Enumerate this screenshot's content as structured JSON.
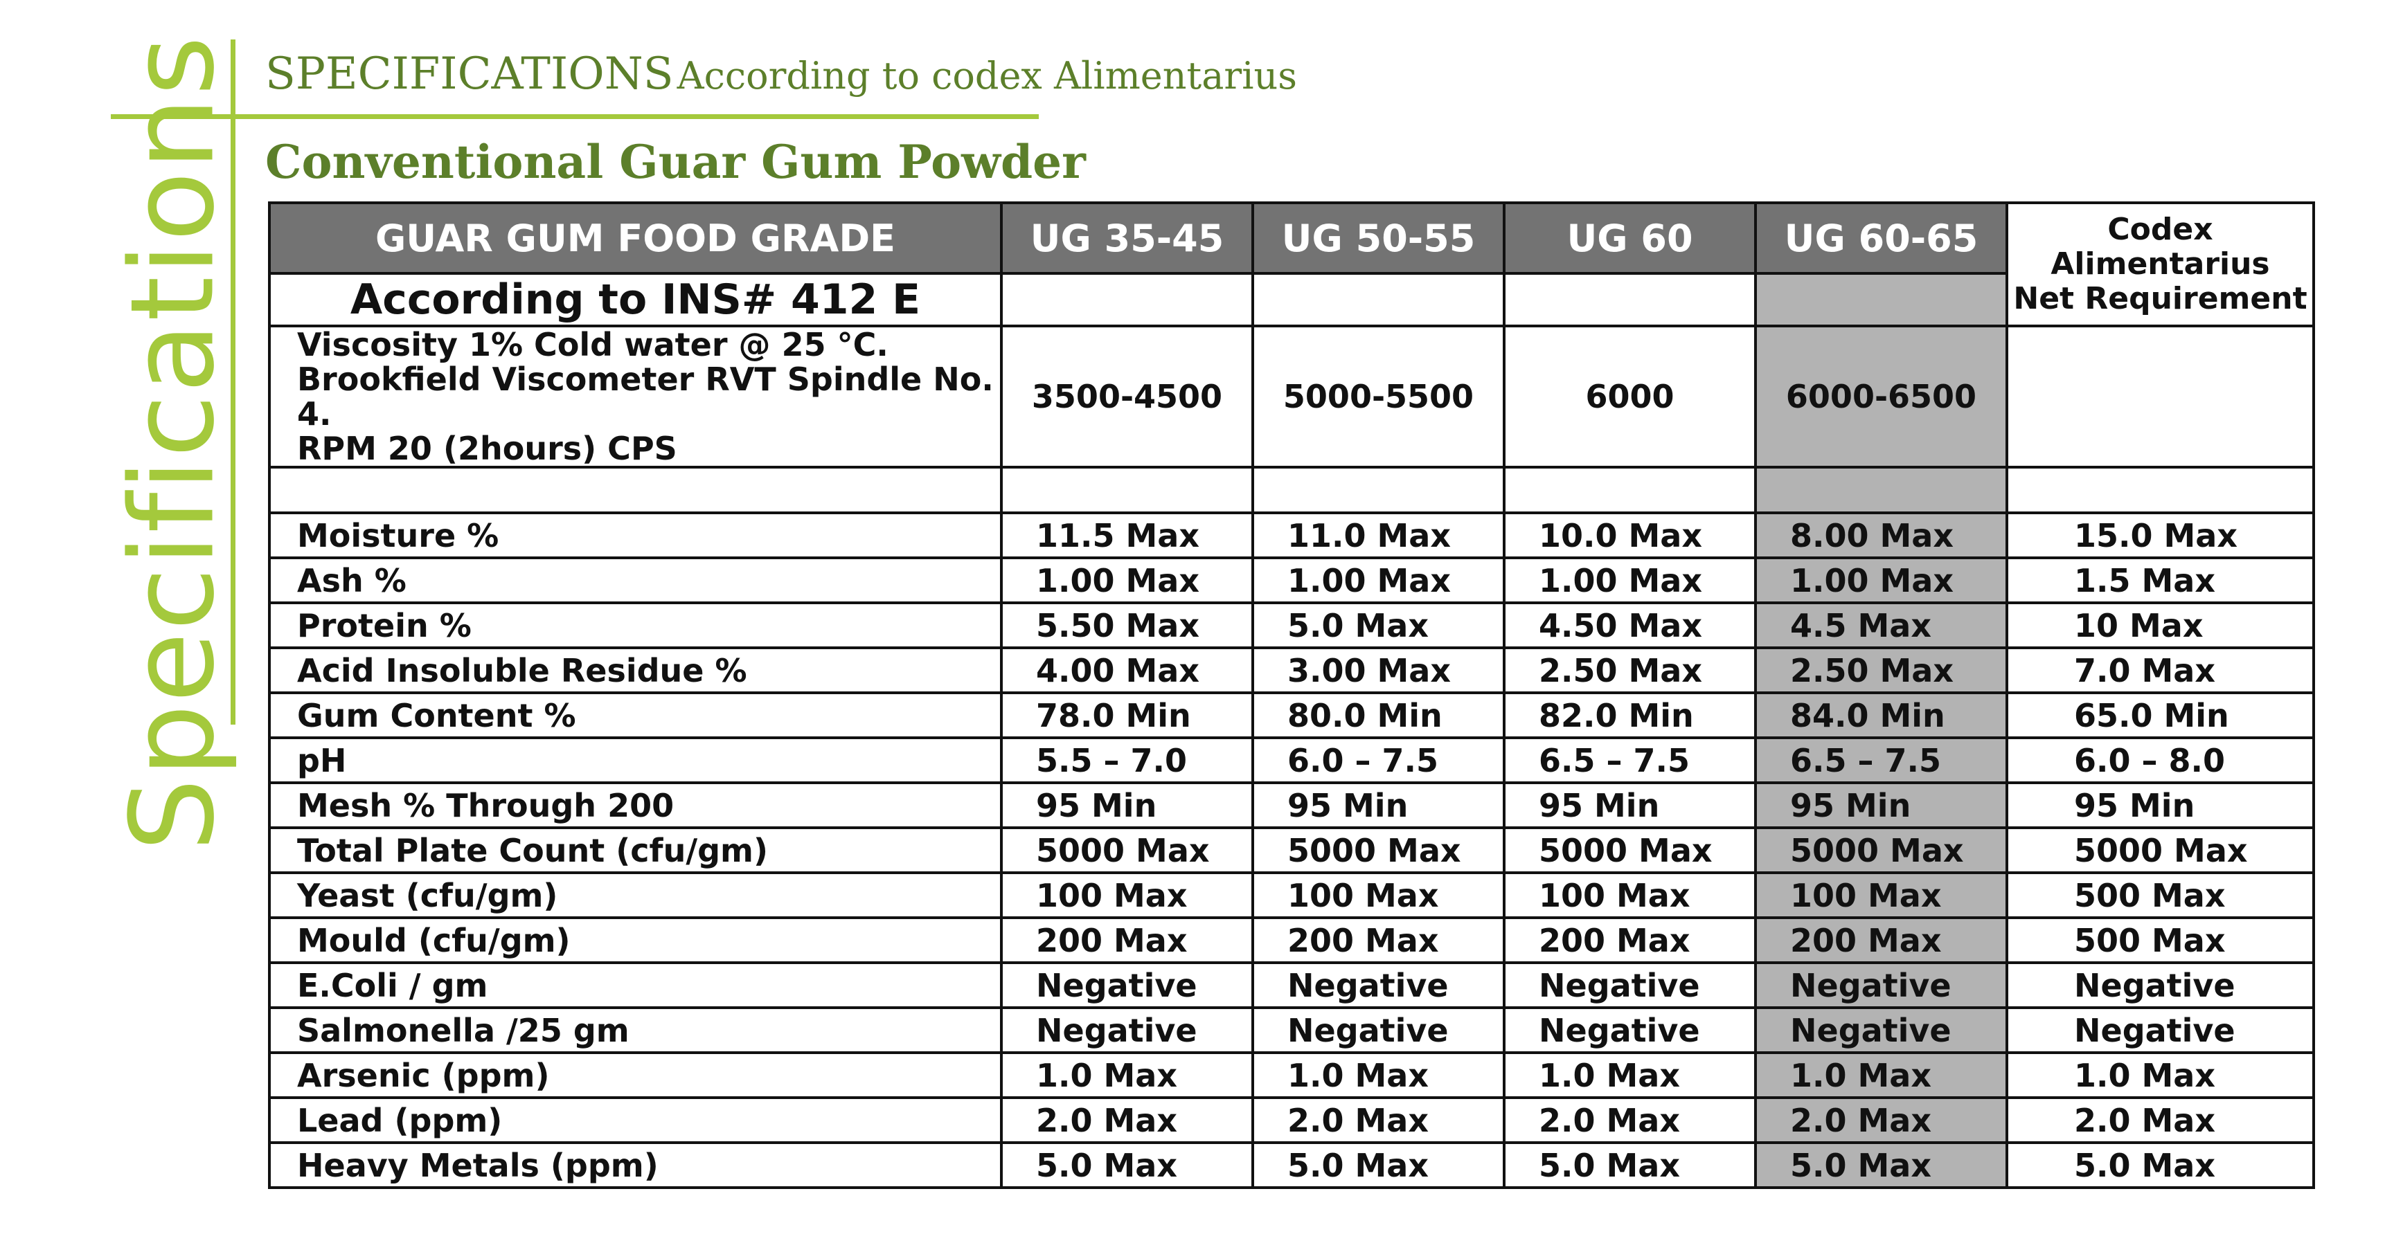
{
  "side_title": "Specifications",
  "heading": {
    "caps": "SPECIFICATIONS",
    "rest": "According to codex Alimentarius"
  },
  "product_title": "Conventional Guar Gum Powder",
  "table": {
    "header": [
      "GUAR GUM FOOD GRADE",
      "UG 35-45",
      "UG 50-55",
      "UG 60",
      "UG 60-65"
    ],
    "codex_header": [
      "Codex",
      "Alimentarius",
      "Net Requirement"
    ],
    "ins_label": "According to INS# 412 E",
    "viscosity": {
      "label_lines": [
        "Viscosity 1% Cold water @ 25 °C.",
        "Brookfield Viscometer RVT Spindle No. 4.",
        "RPM 20 (2hours) CPS"
      ],
      "values": [
        "3500-4500",
        "5000-5500",
        "6000",
        "6000-6500",
        ""
      ]
    },
    "rows": [
      {
        "label": "Moisture %",
        "values": [
          "11.5 Max",
          "11.0 Max",
          "10.0 Max",
          "8.00 Max",
          "15.0 Max"
        ]
      },
      {
        "label": "Ash %",
        "values": [
          "1.00 Max",
          "1.00 Max",
          "1.00 Max",
          "1.00 Max",
          "1.5 Max"
        ]
      },
      {
        "label": "Protein %",
        "values": [
          "5.50 Max",
          "5.0 Max",
          "4.50 Max",
          "4.5 Max",
          "10 Max"
        ]
      },
      {
        "label": "Acid Insoluble Residue %",
        "values": [
          "4.00 Max",
          "3.00 Max",
          "2.50 Max",
          "2.50 Max",
          "7.0 Max"
        ]
      },
      {
        "label": "Gum Content %",
        "values": [
          "78.0 Min",
          "80.0 Min",
          "82.0 Min",
          "84.0 Min",
          "65.0 Min"
        ]
      },
      {
        "label": "pH",
        "values": [
          "5.5 – 7.0",
          "6.0 – 7.5",
          "6.5 – 7.5",
          "6.5 – 7.5",
          "6.0 – 8.0"
        ]
      },
      {
        "label": "Mesh % Through 200",
        "values": [
          "95 Min",
          "95 Min",
          "95 Min",
          "95 Min",
          "95 Min"
        ]
      },
      {
        "label": "Total Plate Count (cfu/gm)",
        "values": [
          "5000 Max",
          "5000 Max",
          "5000 Max",
          "5000 Max",
          "5000 Max"
        ]
      },
      {
        "label": "Yeast (cfu/gm)",
        "values": [
          "100 Max",
          "100 Max",
          "100 Max",
          "100 Max",
          "500 Max"
        ]
      },
      {
        "label": "Mould (cfu/gm)",
        "values": [
          "200 Max",
          "200 Max",
          "200 Max",
          "200 Max",
          "500 Max"
        ]
      },
      {
        "label": "E.Coli / gm",
        "values": [
          "Negative",
          "Negative",
          "Negative",
          "Negative",
          "Negative"
        ]
      },
      {
        "label": "Salmonella /25 gm",
        "values": [
          "Negative",
          "Negative",
          "Negative",
          "Negative",
          "Negative"
        ]
      },
      {
        "label": "Arsenic (ppm)",
        "values": [
          "1.0 Max",
          "1.0 Max",
          "1.0 Max",
          "1.0 Max",
          "1.0 Max"
        ]
      },
      {
        "label": "Lead (ppm)",
        "values": [
          "2.0 Max",
          "2.0 Max",
          "2.0 Max",
          "2.0 Max",
          "2.0 Max"
        ]
      },
      {
        "label": "Heavy Metals (ppm)",
        "values": [
          "5.0 Max",
          "5.0 Max",
          "5.0 Max",
          "5.0 Max",
          "5.0 Max"
        ]
      }
    ]
  },
  "colors": {
    "accent_green": "#a4c93c",
    "heading_green": "#5c7f2a",
    "header_gray": "#737373",
    "highlight_gray": "#b3b3b3"
  }
}
